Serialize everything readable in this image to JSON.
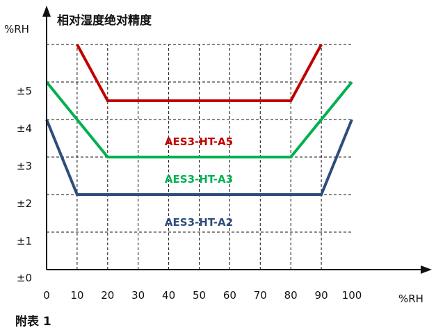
{
  "chart_data": {
    "type": "line",
    "title": "相对湿度绝对精度",
    "xlabel": "%RH",
    "ylabel": "%RH",
    "x_ticks": [
      "0",
      "10",
      "20",
      "30",
      "40",
      "50",
      "60",
      "70",
      "80",
      "90",
      "100"
    ],
    "y_ticks": [
      "±0",
      "±1",
      "±2",
      "±3",
      "±4",
      "±5"
    ],
    "xlim": [
      0,
      100
    ],
    "ylim": [
      0,
      6
    ],
    "grid": true,
    "series": [
      {
        "name": "AES3-HT-A5",
        "color": "#c00000",
        "points": [
          [
            10,
            6
          ],
          [
            20,
            4.5
          ],
          [
            80,
            4.5
          ],
          [
            90,
            6
          ]
        ]
      },
      {
        "name": "AES3-HT-A3",
        "color": "#00b050",
        "points": [
          [
            0,
            5
          ],
          [
            20,
            3
          ],
          [
            80,
            3
          ],
          [
            100,
            5
          ]
        ]
      },
      {
        "name": "AES3-HT-A2",
        "color": "#2e4d7b",
        "points": [
          [
            0,
            4
          ],
          [
            10,
            2
          ],
          [
            90,
            2
          ],
          [
            100,
            4
          ]
        ]
      }
    ]
  },
  "caption": "附表 1"
}
